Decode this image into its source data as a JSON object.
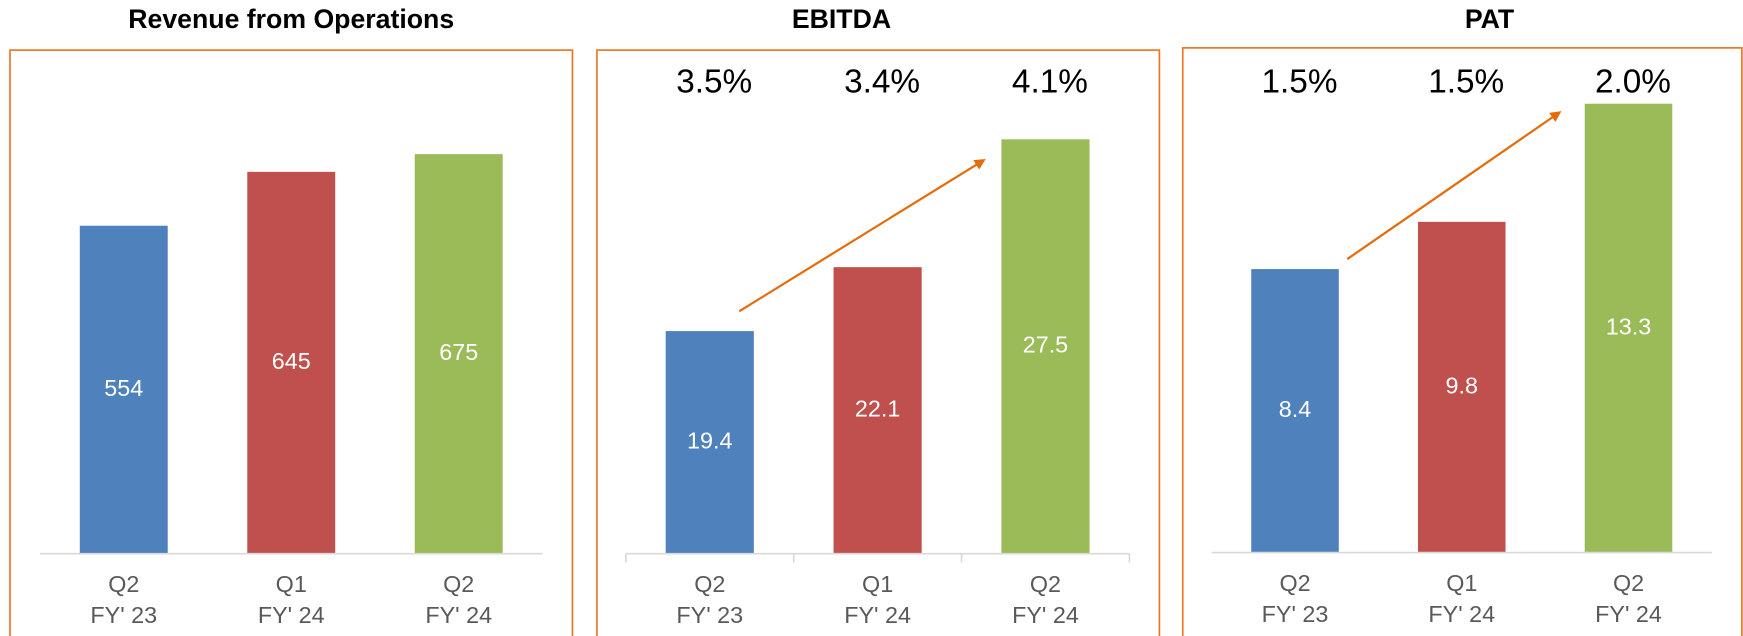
{
  "chart_data": [
    {
      "type": "bar",
      "title": "Revenue from Operations",
      "categories": [
        [
          "Q2",
          "FY' 23"
        ],
        [
          "Q1",
          "FY' 24"
        ],
        [
          "Q2",
          "FY' 24"
        ]
      ],
      "values": [
        554,
        645,
        675
      ],
      "colors": [
        "#4f81bd",
        "#c0504d",
        "#9bbb59"
      ],
      "ylim": [
        0,
        800
      ]
    },
    {
      "type": "bar",
      "title": "EBITDA",
      "categories": [
        [
          "Q2",
          "FY' 23"
        ],
        [
          "Q1",
          "FY' 24"
        ],
        [
          "Q2",
          "FY' 24"
        ]
      ],
      "values": [
        19.4,
        22.1,
        27.5
      ],
      "colors": [
        "#4f81bd",
        "#c0504d",
        "#9bbb59"
      ],
      "margin": {
        "values": [
          3.5,
          3.4,
          4.1
        ],
        "value_labels": [
          "3.5%",
          "3.4%",
          "4.1%"
        ]
      },
      "x_tick_marks": true,
      "ylim": [
        10,
        30
      ]
    },
    {
      "type": "bar",
      "title": "PAT",
      "categories": [
        [
          "Q2",
          "FY' 23"
        ],
        [
          "Q1",
          "FY' 24"
        ],
        [
          "Q2",
          "FY' 24"
        ]
      ],
      "values": [
        8.4,
        9.8,
        13.3
      ],
      "colors": [
        "#4f81bd",
        "#c0504d",
        "#9bbb59"
      ],
      "margin": {
        "values": [
          1.5,
          1.5,
          2.0
        ],
        "value_labels": [
          "1.5%",
          "1.5%",
          "2.0%"
        ]
      },
      "ylim": [
        0,
        14
      ]
    }
  ]
}
